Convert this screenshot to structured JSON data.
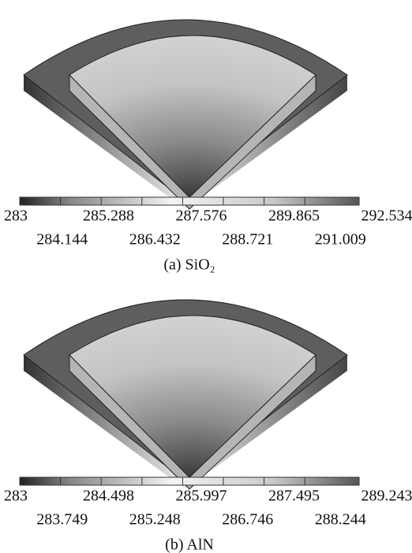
{
  "panels": [
    {
      "ticks": [
        283,
        284.144,
        285.288,
        286.432,
        287.576,
        288.721,
        289.865,
        291.009,
        292.534
      ],
      "caption": "(a) SiO₂"
    },
    {
      "ticks": [
        283,
        283.749,
        284.498,
        285.248,
        285.997,
        286.746,
        287.495,
        288.244,
        289.243
      ],
      "caption": "(b) AlN"
    }
  ]
}
